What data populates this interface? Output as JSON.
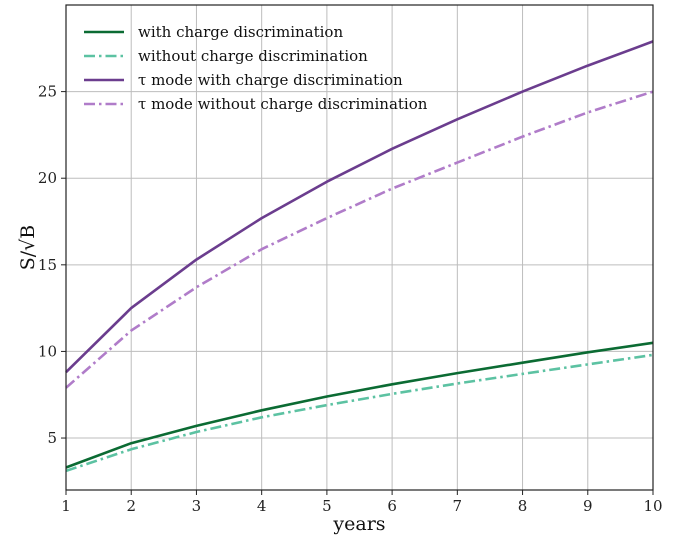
{
  "chart_data": {
    "type": "line",
    "xlabel": "years",
    "ylabel": "S/√B",
    "xlim": [
      1,
      10
    ],
    "ylim": [
      2,
      30
    ],
    "x_ticks": [
      1,
      2,
      3,
      4,
      5,
      6,
      7,
      8,
      9,
      10
    ],
    "y_ticks": [
      5,
      10,
      15,
      20,
      25
    ],
    "grid": true,
    "legend_position": "top-left",
    "x": [
      1,
      2,
      3,
      4,
      5,
      6,
      7,
      8,
      9,
      10
    ],
    "series": [
      {
        "name": "with charge discrimination",
        "color": "#0b6b33",
        "style": "solid",
        "values": [
          3.3,
          4.7,
          5.7,
          6.6,
          7.4,
          8.1,
          8.75,
          9.35,
          9.95,
          10.5
        ]
      },
      {
        "name": "without charge discrimination",
        "color": "#5cc2a2",
        "style": "dashdot",
        "values": [
          3.1,
          4.35,
          5.35,
          6.2,
          6.9,
          7.55,
          8.15,
          8.7,
          9.25,
          9.8
        ]
      },
      {
        "name": "τ mode with charge discrimination",
        "color": "#6b3d8e",
        "style": "solid",
        "values": [
          8.8,
          12.5,
          15.3,
          17.7,
          19.8,
          21.7,
          23.4,
          25.0,
          26.5,
          27.9
        ]
      },
      {
        "name": "τ mode without charge discrimination",
        "color": "#b07cc9",
        "style": "dashdot",
        "values": [
          7.9,
          11.2,
          13.7,
          15.9,
          17.7,
          19.4,
          20.9,
          22.4,
          23.8,
          25.0
        ]
      }
    ]
  }
}
